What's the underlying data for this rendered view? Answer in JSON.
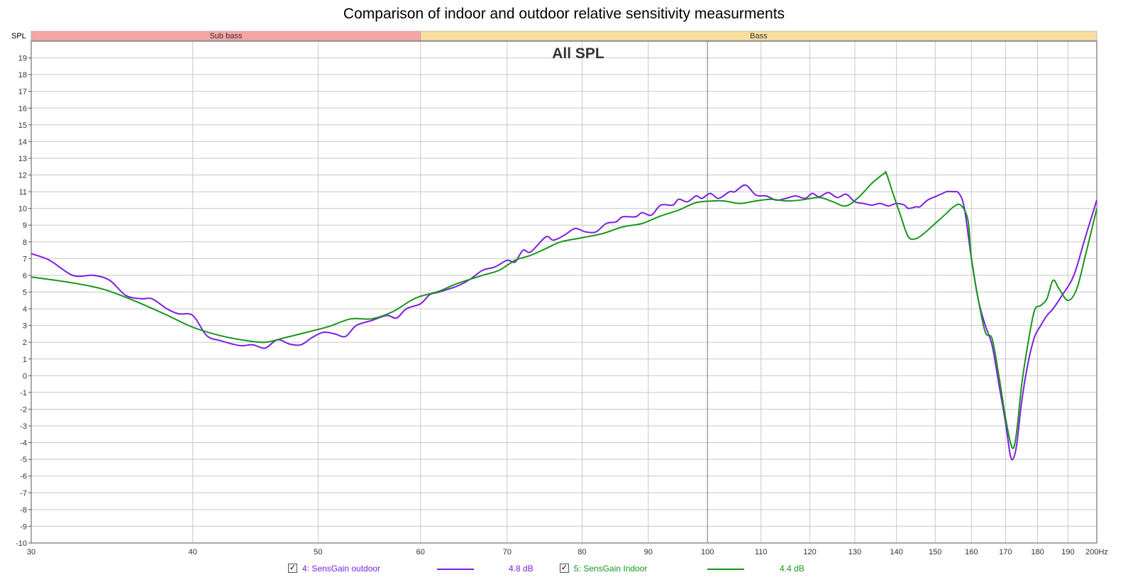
{
  "chart_data": {
    "type": "line",
    "title": "Comparison of indoor and outdoor relative sensitivity measurments",
    "subtitle": "All SPL",
    "ylabel": "SPL",
    "xunit": "Hz",
    "xscale": "log",
    "xlim": [
      30,
      200
    ],
    "ylim": [
      -10,
      20
    ],
    "grid": true,
    "x_ticks": [
      {
        "v": 30,
        "label": "30"
      },
      {
        "v": 40,
        "label": "40"
      },
      {
        "v": 50,
        "label": "50"
      },
      {
        "v": 60,
        "label": "60"
      },
      {
        "v": 70,
        "label": "70"
      },
      {
        "v": 80,
        "label": "80"
      },
      {
        "v": 90,
        "label": "90"
      },
      {
        "v": 100,
        "label": "100"
      },
      {
        "v": 110,
        "label": "110"
      },
      {
        "v": 120,
        "label": "120"
      },
      {
        "v": 130,
        "label": "130"
      },
      {
        "v": 140,
        "label": "140"
      },
      {
        "v": 150,
        "label": "150"
      },
      {
        "v": 160,
        "label": "160"
      },
      {
        "v": 170,
        "label": "170"
      },
      {
        "v": 180,
        "label": "180"
      },
      {
        "v": 190,
        "label": "190"
      },
      {
        "v": 200,
        "label": "200Hz"
      }
    ],
    "y_ticks": [
      -10,
      -9,
      -8,
      -7,
      -6,
      -5,
      -4,
      -3,
      -2,
      -1,
      0,
      1,
      2,
      3,
      4,
      5,
      6,
      7,
      8,
      9,
      10,
      11,
      12,
      13,
      14,
      15,
      16,
      17,
      18,
      19
    ],
    "bands": [
      {
        "label": "Sub bass",
        "from": 30,
        "to": 60,
        "color": "#f7a5a5"
      },
      {
        "label": "Bass",
        "from": 60,
        "to": 200,
        "color": "#f9dea0"
      }
    ],
    "series": [
      {
        "name": "4: SensGain outdoor",
        "color": "#7b1fe0",
        "value_label": "4.8 dB",
        "points": [
          [
            30,
            7.3
          ],
          [
            31,
            6.9
          ],
          [
            32.3,
            6.0
          ],
          [
            33.5,
            6.0
          ],
          [
            34.5,
            5.7
          ],
          [
            35.5,
            4.8
          ],
          [
            36.5,
            4.6
          ],
          [
            37.2,
            4.6
          ],
          [
            38.2,
            4.0
          ],
          [
            39,
            3.7
          ],
          [
            40,
            3.6
          ],
          [
            41,
            2.4
          ],
          [
            42,
            2.1
          ],
          [
            43.5,
            1.8
          ],
          [
            44.5,
            1.85
          ],
          [
            45.5,
            1.65
          ],
          [
            46.5,
            2.15
          ],
          [
            47.5,
            1.9
          ],
          [
            48.5,
            1.85
          ],
          [
            49.5,
            2.3
          ],
          [
            50.5,
            2.6
          ],
          [
            51.5,
            2.5
          ],
          [
            52.5,
            2.35
          ],
          [
            53.5,
            3.0
          ],
          [
            55,
            3.3
          ],
          [
            56.5,
            3.6
          ],
          [
            57.5,
            3.45
          ],
          [
            58.5,
            4.0
          ],
          [
            60,
            4.3
          ],
          [
            61,
            4.85
          ],
          [
            62,
            5.0
          ],
          [
            64,
            5.35
          ],
          [
            65.5,
            5.75
          ],
          [
            67,
            6.3
          ],
          [
            68.5,
            6.5
          ],
          [
            70,
            6.9
          ],
          [
            71,
            6.8
          ],
          [
            72,
            7.5
          ],
          [
            73,
            7.4
          ],
          [
            75,
            8.3
          ],
          [
            76,
            8.1
          ],
          [
            77.5,
            8.4
          ],
          [
            79,
            8.8
          ],
          [
            80.5,
            8.6
          ],
          [
            82,
            8.6
          ],
          [
            83.5,
            9.1
          ],
          [
            85,
            9.2
          ],
          [
            86,
            9.5
          ],
          [
            88,
            9.5
          ],
          [
            89,
            9.75
          ],
          [
            90.5,
            9.6
          ],
          [
            92,
            10.2
          ],
          [
            94,
            10.2
          ],
          [
            95,
            10.55
          ],
          [
            96.5,
            10.4
          ],
          [
            98,
            10.75
          ],
          [
            99,
            10.6
          ],
          [
            100.5,
            10.9
          ],
          [
            102,
            10.6
          ],
          [
            104,
            11.0
          ],
          [
            105,
            11.0
          ],
          [
            107,
            11.4
          ],
          [
            109,
            10.8
          ],
          [
            111,
            10.75
          ],
          [
            113,
            10.5
          ],
          [
            115,
            10.6
          ],
          [
            117,
            10.75
          ],
          [
            119,
            10.6
          ],
          [
            120.5,
            10.9
          ],
          [
            122,
            10.7
          ],
          [
            124,
            10.95
          ],
          [
            126,
            10.65
          ],
          [
            128,
            10.85
          ],
          [
            130,
            10.4
          ],
          [
            132,
            10.3
          ],
          [
            134,
            10.2
          ],
          [
            136,
            10.3
          ],
          [
            138,
            10.15
          ],
          [
            140,
            10.3
          ],
          [
            142,
            10.2
          ],
          [
            143,
            10.0
          ],
          [
            145,
            10.1
          ],
          [
            146,
            10.1
          ],
          [
            148,
            10.5
          ],
          [
            150,
            10.7
          ],
          [
            152,
            10.9
          ],
          [
            153,
            11.0
          ],
          [
            155,
            11.0
          ],
          [
            156.5,
            10.9
          ],
          [
            158,
            10.0
          ],
          [
            160,
            7.0
          ],
          [
            162,
            4.5
          ],
          [
            164,
            3.0
          ],
          [
            166,
            1.8
          ],
          [
            168,
            -0.5
          ],
          [
            170,
            -2.8
          ],
          [
            171.5,
            -4.8
          ],
          [
            172.5,
            -4.9
          ],
          [
            173.5,
            -4.0
          ],
          [
            175,
            -1.5
          ],
          [
            177,
            0.8
          ],
          [
            179,
            2.3
          ],
          [
            181,
            3.0
          ],
          [
            183,
            3.6
          ],
          [
            185,
            4.0
          ],
          [
            188,
            4.8
          ],
          [
            192,
            6.0
          ],
          [
            196,
            8.3
          ],
          [
            200,
            10.5
          ]
        ]
      },
      {
        "name": "5: SensGain Indoor",
        "color": "#16961a",
        "value_label": "4.4 dB",
        "points": [
          [
            30,
            5.9
          ],
          [
            32,
            5.6
          ],
          [
            34,
            5.2
          ],
          [
            36,
            4.5
          ],
          [
            38,
            3.7
          ],
          [
            40,
            2.9
          ],
          [
            42,
            2.4
          ],
          [
            44,
            2.1
          ],
          [
            45.5,
            2.0
          ],
          [
            47,
            2.25
          ],
          [
            49,
            2.6
          ],
          [
            51,
            2.95
          ],
          [
            53,
            3.4
          ],
          [
            55,
            3.4
          ],
          [
            57,
            3.8
          ],
          [
            59,
            4.5
          ],
          [
            60,
            4.75
          ],
          [
            62,
            5.05
          ],
          [
            64,
            5.5
          ],
          [
            67,
            6.0
          ],
          [
            69,
            6.3
          ],
          [
            71,
            6.9
          ],
          [
            73,
            7.2
          ],
          [
            75,
            7.6
          ],
          [
            77,
            8.0
          ],
          [
            80,
            8.25
          ],
          [
            83,
            8.5
          ],
          [
            86,
            8.9
          ],
          [
            89,
            9.1
          ],
          [
            92,
            9.55
          ],
          [
            95,
            9.9
          ],
          [
            98,
            10.35
          ],
          [
            101,
            10.45
          ],
          [
            103,
            10.45
          ],
          [
            106,
            10.3
          ],
          [
            109,
            10.45
          ],
          [
            112,
            10.55
          ],
          [
            115,
            10.45
          ],
          [
            118,
            10.5
          ],
          [
            122,
            10.65
          ],
          [
            125,
            10.4
          ],
          [
            128,
            10.15
          ],
          [
            131,
            10.7
          ],
          [
            134,
            11.5
          ],
          [
            137,
            12.1
          ],
          [
            137.5,
            12.1
          ],
          [
            139,
            11.0
          ],
          [
            141,
            9.6
          ],
          [
            143,
            8.3
          ],
          [
            145,
            8.2
          ],
          [
            147,
            8.5
          ],
          [
            150,
            9.1
          ],
          [
            153,
            9.7
          ],
          [
            155,
            10.1
          ],
          [
            157,
            10.2
          ],
          [
            159,
            9.3
          ],
          [
            160,
            7.0
          ],
          [
            162,
            4.5
          ],
          [
            164,
            2.6
          ],
          [
            166,
            2.2
          ],
          [
            168,
            0.0
          ],
          [
            170,
            -2.5
          ],
          [
            171.5,
            -4.0
          ],
          [
            172.5,
            -4.3
          ],
          [
            173.5,
            -3.2
          ],
          [
            175,
            -0.5
          ],
          [
            177,
            2.0
          ],
          [
            179,
            3.9
          ],
          [
            181,
            4.2
          ],
          [
            183,
            4.6
          ],
          [
            185,
            5.7
          ],
          [
            187,
            5.2
          ],
          [
            190,
            4.5
          ],
          [
            193,
            5.2
          ],
          [
            196,
            7.2
          ],
          [
            200,
            10.0
          ]
        ]
      }
    ]
  }
}
